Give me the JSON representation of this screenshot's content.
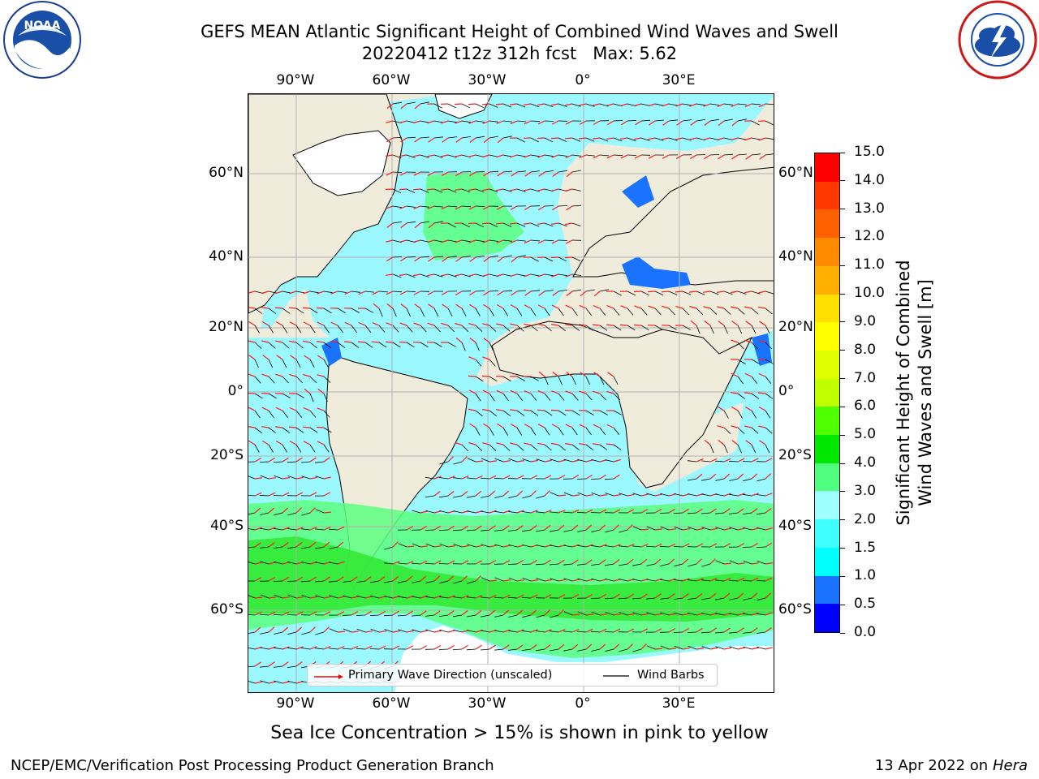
{
  "title": {
    "line1": "GEFS MEAN Atlantic Significant Height of Combined Wind Waves and Swell",
    "line2": "20220412 t12z 312h fcst   Max: 5.62"
  },
  "logos": {
    "left": {
      "icon": "noaa-logo-icon",
      "text": "NOAA",
      "ring_text": "NATIONAL OCEANIC AND ATMOSPHERIC ADMINISTRATION · U.S. DEPARTMENT OF COMMERCE"
    },
    "right": {
      "icon": "nws-logo-icon",
      "ring_text": "NATIONAL WEATHER SERVICE"
    }
  },
  "map": {
    "lon_labels": [
      "90°W",
      "60°W",
      "30°W",
      "0°",
      "30°E"
    ],
    "lat_labels_left": [
      "60°N",
      "40°N",
      "20°N",
      "0°",
      "20°S",
      "40°S",
      "60°S"
    ],
    "lat_labels_right": [
      "60°N",
      "40°N",
      "20°N",
      "0°",
      "20°S",
      "40°S",
      "60°S"
    ],
    "colors": {
      "land": "#efecdc",
      "ocean_low": "#80ffff",
      "ocean_mid": "#40ffe0",
      "green": "#40ff40",
      "ice": "#ffffff",
      "barb": "#000000",
      "arrow": "#ff0000",
      "grid": "#b0b0b0"
    }
  },
  "legend": {
    "wave_label": "Primary Wave Direction (unscaled)",
    "barb_label": "Wind Barbs"
  },
  "colorbar": {
    "title_line1": "Significant Height of Combined",
    "title_line2": "Wind Waves and Swell [m]",
    "ticks": [
      "0.0",
      "0.5",
      "1.0",
      "1.5",
      "2.0",
      "3.0",
      "4.0",
      "5.0",
      "6.0",
      "7.0",
      "8.0",
      "9.0",
      "10.0",
      "11.0",
      "12.0",
      "13.0",
      "14.0",
      "15.0"
    ],
    "colors": [
      "#0000ff",
      "#1a73ff",
      "#00ffff",
      "#40ffff",
      "#a0ffff",
      "#50ff80",
      "#00e800",
      "#50ff00",
      "#c0ff00",
      "#e0ff00",
      "#ffff00",
      "#ffe000",
      "#ffb000",
      "#ff8c00",
      "#ff6000",
      "#ff3800",
      "#ff0000"
    ]
  },
  "subtitle": "Sea Ice Concentration > 15% is shown in pink to yellow",
  "footer": {
    "left": "NCEP/EMC/Verification Post Processing Product Generation Branch",
    "right_date": "13 Apr 2022 on ",
    "right_host": "Hera"
  }
}
